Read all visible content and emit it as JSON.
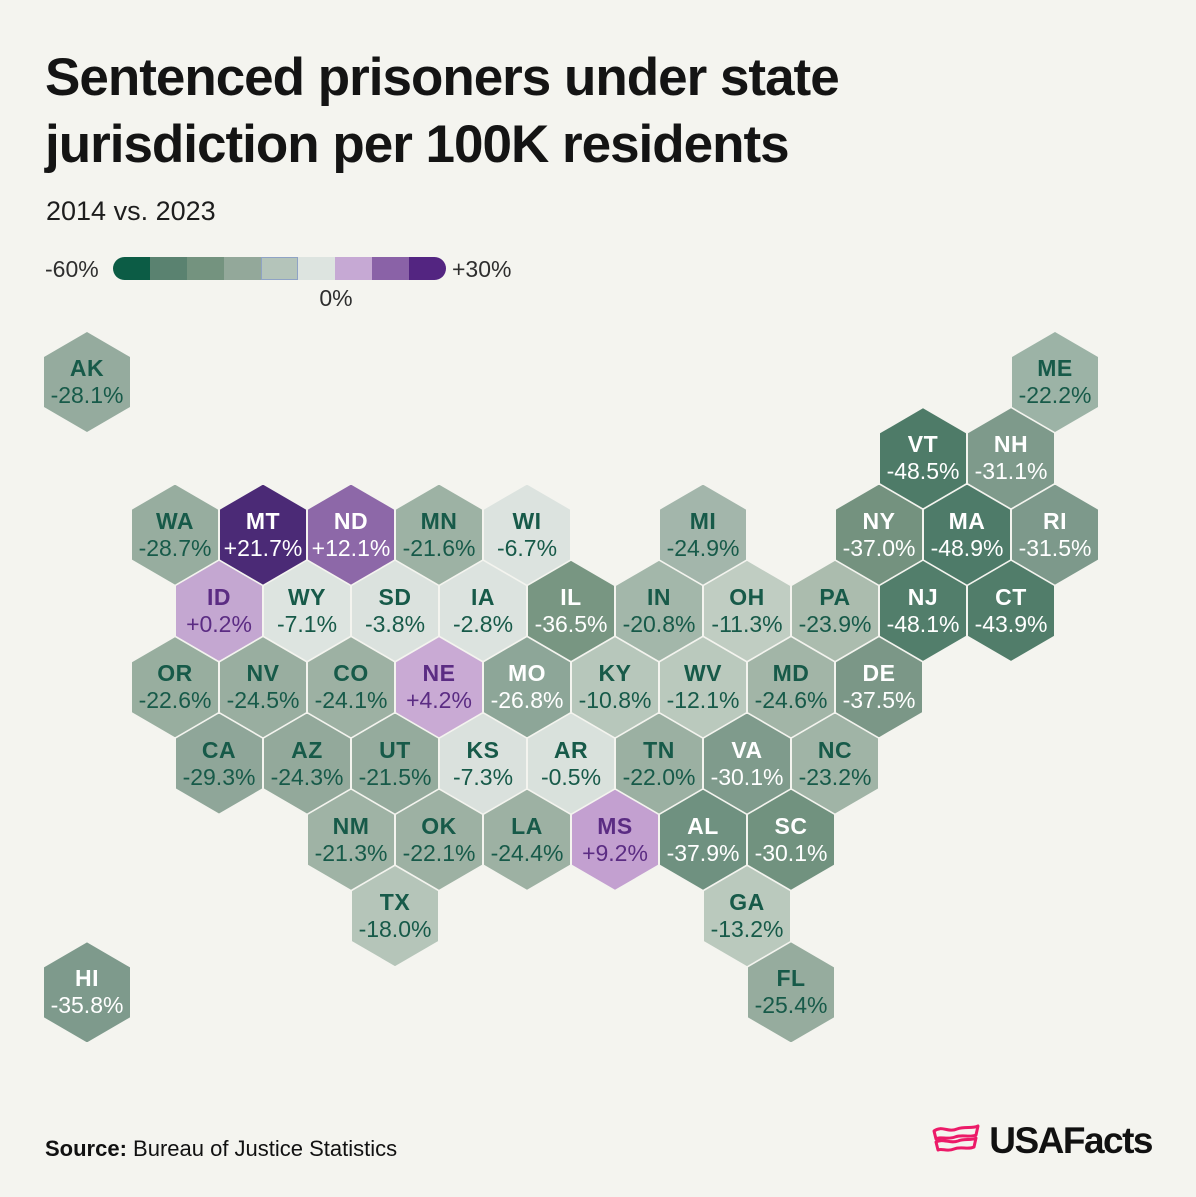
{
  "header": {
    "title_line1": "Sentenced prisoners under state",
    "title_line2": "jurisdiction per 100K residents",
    "subtitle": "2014 vs. 2023"
  },
  "legend": {
    "min_label": "-60%",
    "mid_label": "0%",
    "max_label": "+30%",
    "highlighted_swatch": 5,
    "colors": [
      "#0c5c45",
      "#5a8270",
      "#74937f",
      "#93a89a",
      "#b4c4ba",
      "#dde4e0",
      "#c6a9d4",
      "#8a62a7",
      "#532581"
    ]
  },
  "map": {
    "text_colors": {
      "white": "#ffffff",
      "green": "#175a49",
      "purple": "#5b2c83"
    }
  },
  "footer": {
    "source_label": "Source:",
    "source_text": " Bureau of Justice Statistics",
    "brand": "USAFacts",
    "brand_color": "#ec1a68"
  },
  "chart_data": {
    "type": "heatmap",
    "subtype": "hex-tile-cartogram",
    "title": "Sentenced prisoners under state jurisdiction per 100K residents",
    "subtitle": "2014 vs. 2023",
    "unit": "percent change",
    "color_scale": {
      "min": -60,
      "mid": 0,
      "max": 30,
      "legend_position": "top-left"
    },
    "points": [
      {
        "abbr": "AK",
        "label": "-28.1%",
        "pct": -28.1,
        "col": 0,
        "row": 0,
        "fill": "#95ab9e",
        "text": "green"
      },
      {
        "abbr": "ME",
        "label": "-22.2%",
        "pct": -22.2,
        "col": 22,
        "row": 0,
        "fill": "#9cb3a6",
        "text": "green"
      },
      {
        "abbr": "VT",
        "label": "-48.5%",
        "pct": -48.5,
        "col": 19,
        "row": 1,
        "fill": "#4e7b68",
        "text": "white"
      },
      {
        "abbr": "NH",
        "label": "-31.1%",
        "pct": -31.1,
        "col": 21,
        "row": 1,
        "fill": "#7e9a8b",
        "text": "white"
      },
      {
        "abbr": "WA",
        "label": "-28.7%",
        "pct": -28.7,
        "col": 2,
        "row": 2,
        "fill": "#97ad9f",
        "text": "green"
      },
      {
        "abbr": "MT",
        "label": "+21.7%",
        "pct": 21.7,
        "col": 4,
        "row": 2,
        "fill": "#4b2a76",
        "text": "white"
      },
      {
        "abbr": "ND",
        "label": "+12.1%",
        "pct": 12.1,
        "col": 6,
        "row": 2,
        "fill": "#8d68a8",
        "text": "white"
      },
      {
        "abbr": "MN",
        "label": "-21.6%",
        "pct": -21.6,
        "col": 8,
        "row": 2,
        "fill": "#9db2a4",
        "text": "green"
      },
      {
        "abbr": "WI",
        "label": "-6.7%",
        "pct": -6.7,
        "col": 10,
        "row": 2,
        "fill": "#dce3df",
        "text": "green"
      },
      {
        "abbr": "MI",
        "label": "-24.9%",
        "pct": -24.9,
        "col": 14,
        "row": 2,
        "fill": "#a3b6ab",
        "text": "green"
      },
      {
        "abbr": "NY",
        "label": "-37.0%",
        "pct": -37.0,
        "col": 18,
        "row": 2,
        "fill": "#74927f",
        "text": "white"
      },
      {
        "abbr": "MA",
        "label": "-48.9%",
        "pct": -48.9,
        "col": 20,
        "row": 2,
        "fill": "#4e7b69",
        "text": "white"
      },
      {
        "abbr": "RI",
        "label": "-31.5%",
        "pct": -31.5,
        "col": 22,
        "row": 2,
        "fill": "#7d998b",
        "text": "white"
      },
      {
        "abbr": "ID",
        "label": "+0.2%",
        "pct": 0.2,
        "col": 3,
        "row": 3,
        "fill": "#c4a7d1",
        "text": "purple"
      },
      {
        "abbr": "WY",
        "label": "-7.1%",
        "pct": -7.1,
        "col": 5,
        "row": 3,
        "fill": "#dde4e0",
        "text": "green"
      },
      {
        "abbr": "SD",
        "label": "-3.8%",
        "pct": -3.8,
        "col": 7,
        "row": 3,
        "fill": "#dbe2de",
        "text": "green"
      },
      {
        "abbr": "IA",
        "label": "-2.8%",
        "pct": -2.8,
        "col": 9,
        "row": 3,
        "fill": "#dce3df",
        "text": "green"
      },
      {
        "abbr": "IL",
        "label": "-36.5%",
        "pct": -36.5,
        "col": 11,
        "row": 3,
        "fill": "#789682",
        "text": "white"
      },
      {
        "abbr": "IN",
        "label": "-20.8%",
        "pct": -20.8,
        "col": 13,
        "row": 3,
        "fill": "#a3b7aa",
        "text": "green"
      },
      {
        "abbr": "OH",
        "label": "-11.3%",
        "pct": -11.3,
        "col": 15,
        "row": 3,
        "fill": "#c0cdc2",
        "text": "green"
      },
      {
        "abbr": "PA",
        "label": "-23.9%",
        "pct": -23.9,
        "col": 17,
        "row": 3,
        "fill": "#abbcae",
        "text": "green"
      },
      {
        "abbr": "NJ",
        "label": "-48.1%",
        "pct": -48.1,
        "col": 19,
        "row": 3,
        "fill": "#527e6b",
        "text": "white"
      },
      {
        "abbr": "CT",
        "label": "-43.9%",
        "pct": -43.9,
        "col": 21,
        "row": 3,
        "fill": "#517d6a",
        "text": "white"
      },
      {
        "abbr": "OR",
        "label": "-22.6%",
        "pct": -22.6,
        "col": 2,
        "row": 4,
        "fill": "#98ae9f",
        "text": "green"
      },
      {
        "abbr": "NV",
        "label": "-24.5%",
        "pct": -24.5,
        "col": 4,
        "row": 4,
        "fill": "#99aea0",
        "text": "green"
      },
      {
        "abbr": "CO",
        "label": "-24.1%",
        "pct": -24.1,
        "col": 6,
        "row": 4,
        "fill": "#9db1a3",
        "text": "green"
      },
      {
        "abbr": "NE",
        "label": "+4.2%",
        "pct": 4.2,
        "col": 8,
        "row": 4,
        "fill": "#c9aad4",
        "text": "purple"
      },
      {
        "abbr": "MO",
        "label": "-26.8%",
        "pct": -26.8,
        "col": 10,
        "row": 4,
        "fill": "#8da698",
        "text": "white"
      },
      {
        "abbr": "KY",
        "label": "-10.8%",
        "pct": -10.8,
        "col": 12,
        "row": 4,
        "fill": "#b7c7bb",
        "text": "green"
      },
      {
        "abbr": "WV",
        "label": "-12.1%",
        "pct": -12.1,
        "col": 14,
        "row": 4,
        "fill": "#bac9bd",
        "text": "green"
      },
      {
        "abbr": "MD",
        "label": "-24.6%",
        "pct": -24.6,
        "col": 16,
        "row": 4,
        "fill": "#a2b5a7",
        "text": "green"
      },
      {
        "abbr": "DE",
        "label": "-37.5%",
        "pct": -37.5,
        "col": 18,
        "row": 4,
        "fill": "#7b9787",
        "text": "white"
      },
      {
        "abbr": "CA",
        "label": "-29.3%",
        "pct": -29.3,
        "col": 3,
        "row": 5,
        "fill": "#8fa699",
        "text": "green"
      },
      {
        "abbr": "AZ",
        "label": "-24.3%",
        "pct": -24.3,
        "col": 5,
        "row": 5,
        "fill": "#93a99b",
        "text": "green"
      },
      {
        "abbr": "UT",
        "label": "-21.5%",
        "pct": -21.5,
        "col": 7,
        "row": 5,
        "fill": "#95ab9d",
        "text": "green"
      },
      {
        "abbr": "KS",
        "label": "-7.3%",
        "pct": -7.3,
        "col": 9,
        "row": 5,
        "fill": "#dae1dd",
        "text": "green"
      },
      {
        "abbr": "AR",
        "label": "-0.5%",
        "pct": -0.5,
        "col": 11,
        "row": 5,
        "fill": "#d9e1dc",
        "text": "green"
      },
      {
        "abbr": "TN",
        "label": "-22.0%",
        "pct": -22.0,
        "col": 13,
        "row": 5,
        "fill": "#9bb0a2",
        "text": "green"
      },
      {
        "abbr": "VA",
        "label": "-30.1%",
        "pct": -30.1,
        "col": 15,
        "row": 5,
        "fill": "#7f9b8c",
        "text": "white"
      },
      {
        "abbr": "NC",
        "label": "-23.2%",
        "pct": -23.2,
        "col": 17,
        "row": 5,
        "fill": "#a0b4a6",
        "text": "green"
      },
      {
        "abbr": "NM",
        "label": "-21.3%",
        "pct": -21.3,
        "col": 6,
        "row": 6,
        "fill": "#9fb3a5",
        "text": "green"
      },
      {
        "abbr": "OK",
        "label": "-22.1%",
        "pct": -22.1,
        "col": 8,
        "row": 6,
        "fill": "#9db1a3",
        "text": "green"
      },
      {
        "abbr": "LA",
        "label": "-24.4%",
        "pct": -24.4,
        "col": 10,
        "row": 6,
        "fill": "#9db1a3",
        "text": "green"
      },
      {
        "abbr": "MS",
        "label": "+9.2%",
        "pct": 9.2,
        "col": 12,
        "row": 6,
        "fill": "#c3a0d0",
        "text": "purple"
      },
      {
        "abbr": "AL",
        "label": "-37.9%",
        "pct": -37.9,
        "col": 14,
        "row": 6,
        "fill": "#6f9180",
        "text": "white"
      },
      {
        "abbr": "SC",
        "label": "-30.1%",
        "pct": -30.1,
        "col": 16,
        "row": 6,
        "fill": "#71927f",
        "text": "white"
      },
      {
        "abbr": "TX",
        "label": "-18.0%",
        "pct": -18.0,
        "col": 7,
        "row": 7,
        "fill": "#b5c5b9",
        "text": "green"
      },
      {
        "abbr": "GA",
        "label": "-13.2%",
        "pct": -13.2,
        "col": 15,
        "row": 7,
        "fill": "#bac9bd",
        "text": "green"
      },
      {
        "abbr": "HI",
        "label": "-35.8%",
        "pct": -35.8,
        "col": 0,
        "row": 8,
        "fill": "#7e9a8c",
        "text": "white"
      },
      {
        "abbr": "FL",
        "label": "-25.4%",
        "pct": -25.4,
        "col": 16,
        "row": 8,
        "fill": "#96ac9e",
        "text": "green"
      }
    ]
  }
}
